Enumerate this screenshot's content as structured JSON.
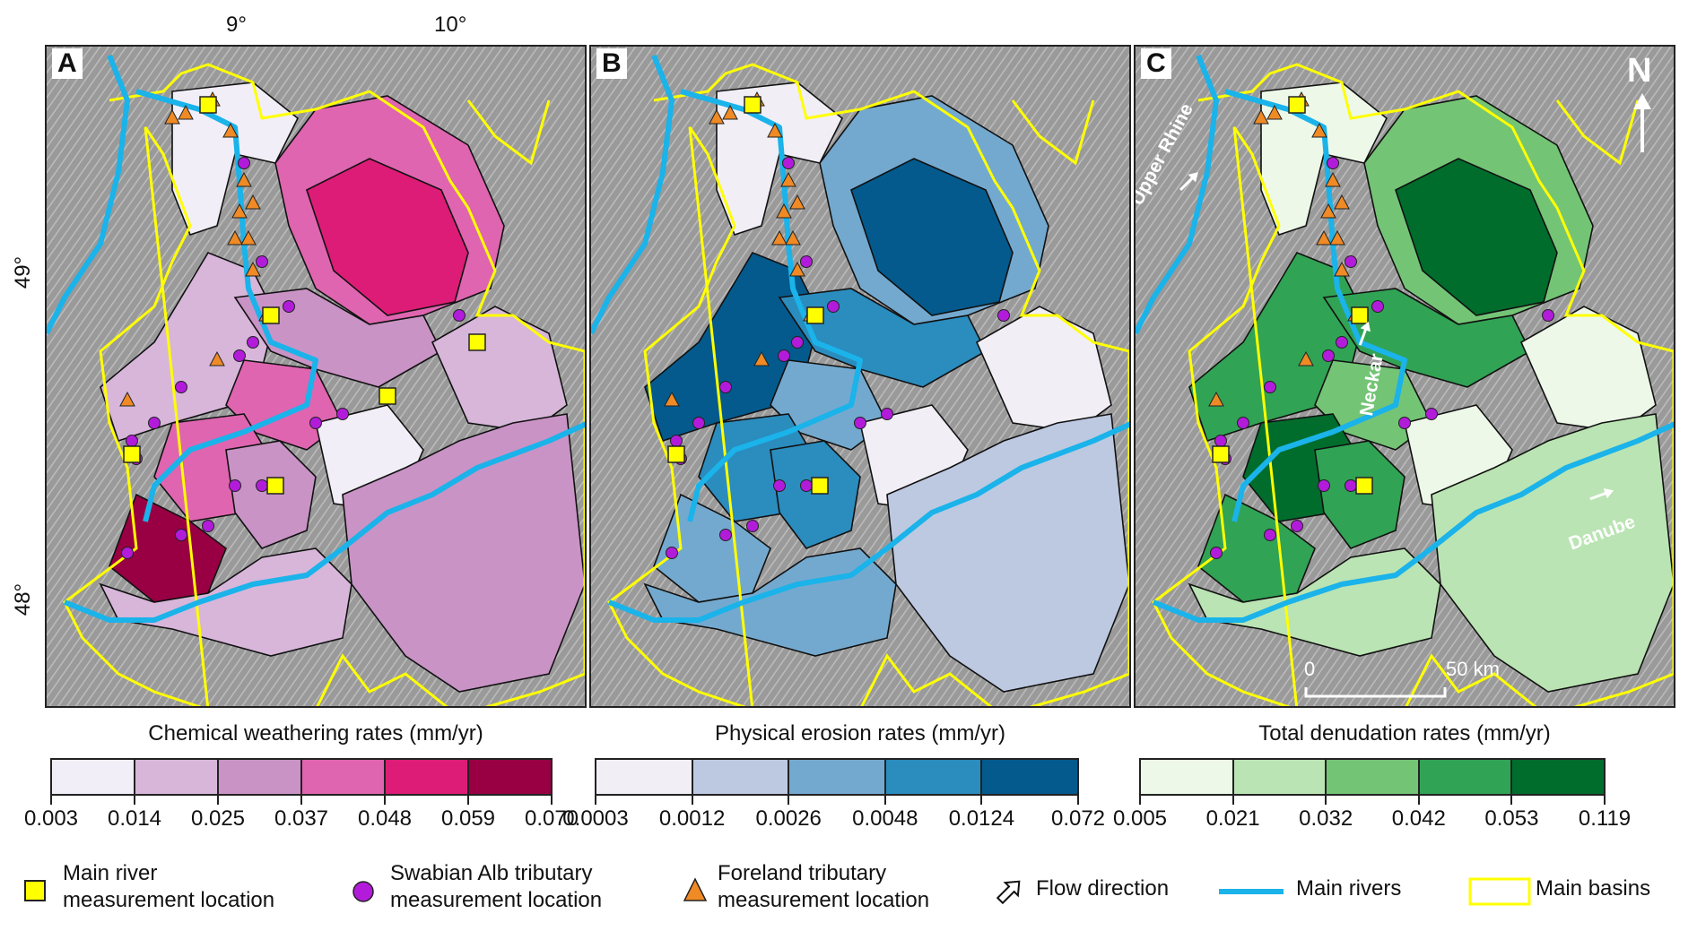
{
  "panels": [
    {
      "letter": "A",
      "title": "Chemical weathering rates (mm/yr)",
      "colors": [
        "#f2eef7",
        "#d7b6da",
        "#c993c6",
        "#df65b0",
        "#dd1c77",
        "#980043"
      ],
      "ticks": [
        "0.003",
        "0.014",
        "0.025",
        "0.037",
        "0.048",
        "0.059",
        "0.070"
      ]
    },
    {
      "letter": "B",
      "title": "Physical erosion rates (mm/yr)",
      "colors": [
        "#f1eef6",
        "#bdc9e1",
        "#74a9cf",
        "#2b8cbe",
        "#045a8d"
      ],
      "ticks": [
        "0.0003",
        "0.0012",
        "0.0026",
        "0.0048",
        "0.0124",
        "0.072"
      ]
    },
    {
      "letter": "C",
      "title": "Total denudation rates (mm/yr)",
      "colors": [
        "#edf8e9",
        "#bae4b3",
        "#74c476",
        "#31a354",
        "#006d2c"
      ],
      "ticks": [
        "0.005",
        "0.021",
        "0.032",
        "0.042",
        "0.053",
        "0.119"
      ]
    }
  ],
  "axes": {
    "lon": [
      "9°",
      "10°"
    ],
    "lat": [
      "49°",
      "48°"
    ]
  },
  "annotations": {
    "north": "N",
    "rivers": [
      "Upper Rhine",
      "Neckar",
      "Danube"
    ],
    "scale_start": "0",
    "scale_end": "50 km"
  },
  "legend": [
    {
      "icon": "yellow-square",
      "label": "Main river\nmeasurement location"
    },
    {
      "icon": "purple-circle",
      "label": "Swabian Alb tributary\nmeasurement location"
    },
    {
      "icon": "orange-triangle",
      "label": "Foreland tributary\nmeasurement location"
    },
    {
      "icon": "flow-arrow",
      "label": "Flow direction"
    },
    {
      "icon": "blue-line",
      "label": "Main rivers"
    },
    {
      "icon": "yellow-box",
      "label": "Main basins"
    }
  ],
  "colors": {
    "river": "#1ab3ea",
    "basin": "#ffff00",
    "square": "#ffff00",
    "circle": "#b31bdb",
    "triangle": "#f08a24"
  }
}
